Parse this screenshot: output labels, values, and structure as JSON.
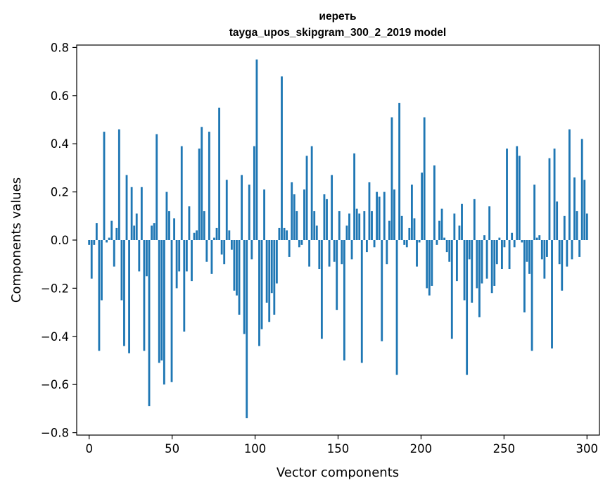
{
  "chart_data": {
    "type": "bar",
    "title": "иереть",
    "subtitle": "tayga_upos_skipgram_300_2_2019 model",
    "xlabel": "Vector components",
    "ylabel": "Components values",
    "xlim": [
      -7.5,
      307.5
    ],
    "ylim": [
      -0.81,
      0.81
    ],
    "xticks": [
      0,
      50,
      100,
      150,
      200,
      250,
      300
    ],
    "xtick_labels": [
      "0",
      "50",
      "100",
      "150",
      "200",
      "250",
      "300"
    ],
    "yticks": [
      -0.8,
      -0.6,
      -0.4,
      -0.2,
      0.0,
      0.2,
      0.4,
      0.6,
      0.8
    ],
    "ytick_labels": [
      "−0.8",
      "−0.6",
      "−0.4",
      "−0.2",
      "0.0",
      "0.2",
      "0.4",
      "0.6",
      "0.8"
    ],
    "bar_color": "#1f77b4",
    "grid": false,
    "values": [
      -0.02,
      -0.16,
      -0.02,
      0.07,
      -0.46,
      -0.25,
      0.45,
      -0.01,
      0.01,
      0.08,
      -0.11,
      0.05,
      0.46,
      -0.25,
      -0.44,
      0.27,
      -0.47,
      0.22,
      0.06,
      0.11,
      -0.13,
      0.22,
      -0.46,
      -0.15,
      -0.69,
      0.06,
      0.07,
      0.44,
      -0.51,
      -0.5,
      -0.6,
      0.2,
      0.12,
      -0.59,
      0.09,
      -0.2,
      -0.13,
      0.39,
      -0.38,
      -0.13,
      0.14,
      -0.17,
      0.03,
      0.04,
      0.38,
      0.47,
      0.12,
      -0.09,
      0.45,
      -0.14,
      0.01,
      0.05,
      0.55,
      -0.06,
      -0.1,
      0.25,
      0.04,
      -0.04,
      -0.21,
      -0.23,
      -0.31,
      0.27,
      -0.39,
      -0.74,
      0.23,
      -0.08,
      0.39,
      0.75,
      -0.44,
      -0.37,
      0.21,
      -0.26,
      -0.34,
      -0.22,
      -0.31,
      -0.18,
      0.05,
      0.68,
      0.05,
      0.04,
      -0.07,
      0.24,
      0.19,
      0.12,
      -0.03,
      -0.02,
      0.21,
      0.35,
      -0.11,
      0.39,
      0.12,
      0.06,
      -0.12,
      -0.41,
      0.19,
      0.17,
      -0.11,
      0.27,
      -0.09,
      -0.29,
      0.12,
      -0.1,
      -0.5,
      0.06,
      0.11,
      -0.08,
      0.36,
      0.13,
      0.11,
      -0.51,
      0.12,
      -0.05,
      0.24,
      0.12,
      -0.03,
      0.2,
      0.18,
      -0.42,
      0.2,
      -0.1,
      0.08,
      0.51,
      0.21,
      -0.56,
      0.57,
      0.1,
      -0.02,
      -0.03,
      0.05,
      0.23,
      0.09,
      -0.11,
      -0.01,
      0.28,
      0.51,
      -0.2,
      -0.23,
      -0.19,
      0.31,
      -0.02,
      0.08,
      0.13,
      0.01,
      -0.05,
      -0.09,
      -0.41,
      0.11,
      -0.17,
      0.06,
      0.15,
      -0.25,
      -0.56,
      -0.08,
      -0.26,
      0.17,
      -0.2,
      -0.32,
      -0.18,
      0.02,
      -0.16,
      0.14,
      -0.22,
      -0.19,
      -0.1,
      0.01,
      -0.12,
      -0.03,
      0.38,
      -0.12,
      0.03,
      -0.03,
      0.39,
      0.35,
      -0.01,
      -0.3,
      -0.09,
      -0.14,
      -0.46,
      0.23,
      0.01,
      0.02,
      -0.08,
      -0.16,
      -0.07,
      0.34,
      -0.45,
      0.38,
      0.16,
      -0.1,
      -0.21,
      0.1,
      -0.11,
      0.46,
      -0.08,
      0.26,
      0.12,
      -0.07,
      0.42,
      0.25,
      0.11
    ]
  }
}
